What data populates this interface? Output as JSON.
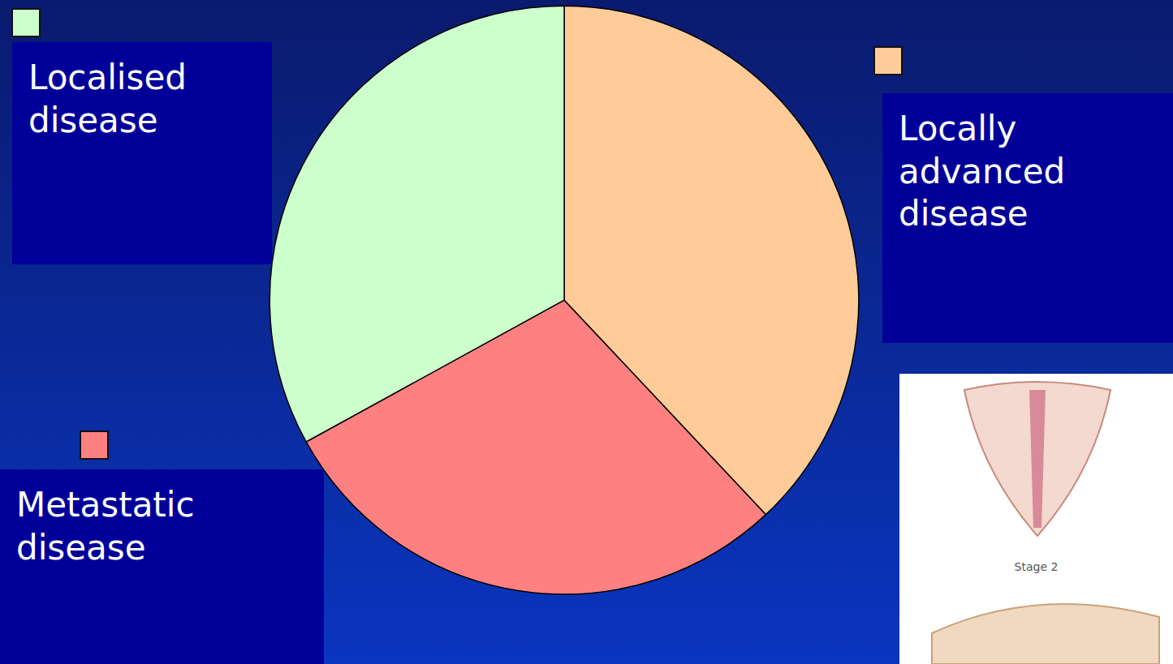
{
  "chart_data": {
    "type": "pie",
    "categories": [
      "Locally advanced disease",
      "Metastatic disease",
      "Localised disease"
    ],
    "values": [
      38,
      29,
      33
    ],
    "colors": [
      "#ffcc99",
      "#ff8080",
      "#ccffcc"
    ],
    "annotations": [
      "Stage 2"
    ]
  }
}
